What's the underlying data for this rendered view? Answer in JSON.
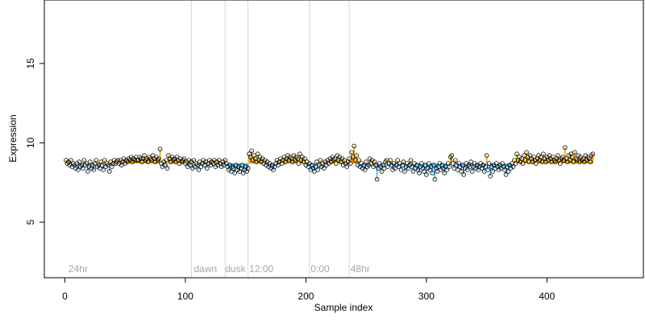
{
  "chart_data": {
    "type": "scatter",
    "xlabel": "Sample index",
    "ylabel": "Expression",
    "xlim": [
      -17,
      480
    ],
    "ylim": [
      1.5,
      19.0
    ],
    "xticks": [
      0,
      100,
      200,
      300,
      400
    ],
    "yticks": [
      5,
      10,
      15
    ],
    "baseline": 8.7,
    "grid": false,
    "vlines": [
      105,
      133,
      152,
      203,
      236
    ],
    "annotations": [
      {
        "x": 3,
        "label": "24hr"
      },
      {
        "x": 107,
        "label": "dawn"
      },
      {
        "x": 133,
        "label": "dusk"
      },
      {
        "x": 153,
        "label": "12:00"
      },
      {
        "x": 204,
        "label": "0:00"
      },
      {
        "x": 237,
        "label": "48hr"
      }
    ],
    "series": [
      {
        "values": [
          8.9,
          8.7,
          8.8,
          8.6,
          8.9,
          8.5,
          8.7,
          8.6,
          8.4,
          8.7,
          8.3,
          8.8,
          8.5,
          8.6,
          8.4,
          8.9,
          8.6,
          8.7,
          8.2,
          8.5,
          8.8,
          8.4,
          8.6,
          8.3,
          8.7,
          8.9,
          8.5,
          8.6,
          8.4,
          8.8,
          8.6,
          8.3,
          8.9,
          8.5,
          8.7,
          8.6,
          8.2,
          8.8,
          8.5,
          8.7,
          8.9,
          8.7,
          8.8,
          8.9,
          8.7,
          8.9,
          8.6,
          8.8,
          9.0,
          8.7,
          8.9,
          8.8,
          9.0,
          8.9,
          9.1,
          8.8,
          9.0,
          8.9,
          9.1,
          8.9,
          8.9,
          9.1,
          9.0,
          8.8,
          9.0,
          9.2,
          8.9,
          9.0,
          8.8,
          9.1,
          9.0,
          8.9,
          9.2,
          9.0,
          8.8,
          9.1,
          8.9,
          9.0,
          9.6,
          8.7,
          8.5,
          8.8,
          8.6,
          8.9,
          8.4,
          9.2,
          9.0,
          8.8,
          9.1,
          8.9,
          9.0,
          8.8,
          9.1,
          8.9,
          8.7,
          9.0,
          8.8,
          8.9,
          9.0,
          8.7,
          8.8,
          8.5,
          8.9,
          8.6,
          8.8,
          8.4,
          8.9,
          8.5,
          8.7,
          8.6,
          8.3,
          8.8,
          8.5,
          8.7,
          8.9,
          8.6,
          8.8,
          8.4,
          8.7,
          8.9,
          8.6,
          8.8,
          8.7,
          8.9,
          8.5,
          8.8,
          8.6,
          8.9,
          8.7,
          8.5,
          8.8,
          8.6,
          8.9,
          8.7,
          8.5,
          8.3,
          8.6,
          8.2,
          8.5,
          8.4,
          8.1,
          8.6,
          8.3,
          8.5,
          8.2,
          8.4,
          8.6,
          8.1,
          8.3,
          8.5,
          8.2,
          8.4,
          9.3,
          9.1,
          9.5,
          8.9,
          9.2,
          9.0,
          8.8,
          9.3,
          8.9,
          9.1,
          8.8,
          9.0,
          8.7,
          8.9,
          8.6,
          8.8,
          8.5,
          8.7,
          8.4,
          8.6,
          8.3,
          8.5,
          8.7,
          8.9,
          8.6,
          8.8,
          9.0,
          8.7,
          8.9,
          9.1,
          8.8,
          9.0,
          9.2,
          8.9,
          9.1,
          9.0,
          8.8,
          9.2,
          8.9,
          9.1,
          9.0,
          8.7,
          9.3,
          8.9,
          9.1,
          8.8,
          9.0,
          8.6,
          8.8,
          8.5,
          8.7,
          8.3,
          8.6,
          8.4,
          8.2,
          8.5,
          8.8,
          8.3,
          8.6,
          8.9,
          8.5,
          8.7,
          8.4,
          8.8,
          8.6,
          8.9,
          8.7,
          9.0,
          8.8,
          9.1,
          8.9,
          9.0,
          8.7,
          9.2,
          8.9,
          9.1,
          8.8,
          9.0,
          8.6,
          8.9,
          8.7,
          8.5,
          8.8,
          9.0,
          8.7,
          9.4,
          9.1,
          9.8,
          8.9,
          9.2,
          8.6,
          8.9,
          8.5,
          8.7,
          8.4,
          8.6,
          8.3,
          8.8,
          8.5,
          8.6,
          9.0,
          8.7,
          8.9,
          8.5,
          8.8,
          8.6,
          7.7,
          8.4,
          8.7,
          8.5,
          8.2,
          8.6,
          8.4,
          8.8,
          8.9,
          8.5,
          8.7,
          8.9,
          8.6,
          8.3,
          8.7,
          8.4,
          8.6,
          8.9,
          8.5,
          8.7,
          8.3,
          8.6,
          8.8,
          8.2,
          8.5,
          8.7,
          8.4,
          8.6,
          8.9,
          8.5,
          8.2,
          8.7,
          8.4,
          8.6,
          8.3,
          8.1,
          8.5,
          8.7,
          8.4,
          8.2,
          8.6,
          8.0,
          8.4,
          8.7,
          8.3,
          8.5,
          8.1,
          8.6,
          7.7,
          8.4,
          8.2,
          8.5,
          8.7,
          8.3,
          8.6,
          8.4,
          8.1,
          8.5,
          8.3,
          8.7,
          8.5,
          9.1,
          9.2,
          8.7,
          8.4,
          8.9,
          8.6,
          8.3,
          8.7,
          8.5,
          8.2,
          8.6,
          8.0,
          8.4,
          8.7,
          8.3,
          8.6,
          8.5,
          8.8,
          8.2,
          8.5,
          8.7,
          8.4,
          8.6,
          8.3,
          8.5,
          8.7,
          8.4,
          8.6,
          8.2,
          8.5,
          9.2,
          8.3,
          8.7,
          7.9,
          8.5,
          8.2,
          8.6,
          8.4,
          8.7,
          8.5,
          8.3,
          8.6,
          8.4,
          8.7,
          8.5,
          8.3,
          8.0,
          8.5,
          8.2,
          8.6,
          8.4,
          8.7,
          8.5,
          8.9,
          8.7,
          9.3,
          8.9,
          9.1,
          8.8,
          9.0,
          8.7,
          9.2,
          8.9,
          9.4,
          9.1,
          8.8,
          9.2,
          9.0,
          8.8,
          9.1,
          8.9,
          8.7,
          9.0,
          9.2,
          8.9,
          9.1,
          8.8,
          9.3,
          9.0,
          8.8,
          9.1,
          8.9,
          9.2,
          9.0,
          8.8,
          9.1,
          8.9,
          8.8,
          9.0,
          9.2,
          8.9,
          8.7,
          9.0,
          9.1,
          8.9,
          9.7,
          9.0,
          8.8,
          9.2,
          8.9,
          9.3,
          9.1,
          8.8,
          9.4,
          9.0,
          8.9,
          9.2,
          8.8,
          9.1,
          8.9,
          9.0,
          8.8,
          9.2,
          8.9,
          9.1,
          9.0,
          8.8,
          9.2,
          9.3
        ]
      }
    ]
  },
  "colors": {
    "above": "#e69f00",
    "below": "#56b4e9",
    "vline": "#d9d9d9",
    "annotation": "#a6a6a6"
  }
}
